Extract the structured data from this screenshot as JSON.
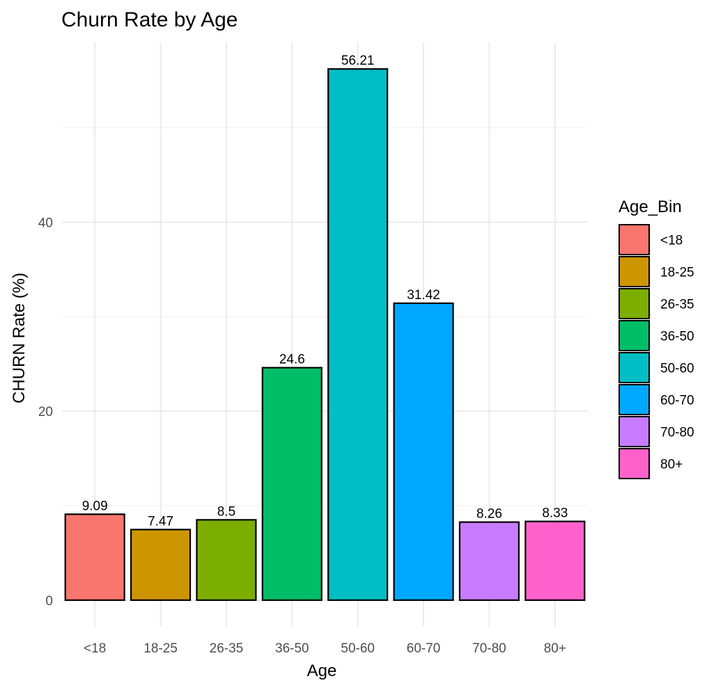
{
  "chart_data": {
    "type": "bar",
    "title": "Churn Rate by Age",
    "xlabel": "Age",
    "ylabel": "CHURN Rate (%)",
    "categories": [
      "<18",
      "18-25",
      "26-35",
      "36-50",
      "50-60",
      "60-70",
      "70-80",
      "80+"
    ],
    "values": [
      9.09,
      7.47,
      8.5,
      24.6,
      56.21,
      31.42,
      8.26,
      8.33
    ],
    "value_labels": [
      "9.09",
      "7.47",
      "8.5",
      "24.6",
      "56.21",
      "31.42",
      "8.26",
      "8.33"
    ],
    "colors": [
      "#F8766D",
      "#CD9600",
      "#7CAE00",
      "#00BE67",
      "#00BFC4",
      "#00A9FF",
      "#C77CFF",
      "#FF61CC"
    ],
    "ylim": [
      -2.81,
      59.02
    ],
    "yticks": [
      0,
      20,
      40
    ],
    "ytick_labels": [
      "0",
      "20",
      "40"
    ],
    "y_minor_ticks": [
      10,
      30,
      50
    ],
    "grid": true,
    "legend": {
      "title": "Age_Bin",
      "placement": "right",
      "entries": [
        "<18",
        "18-25",
        "26-35",
        "36-50",
        "50-60",
        "60-70",
        "70-80",
        "80+"
      ]
    }
  }
}
